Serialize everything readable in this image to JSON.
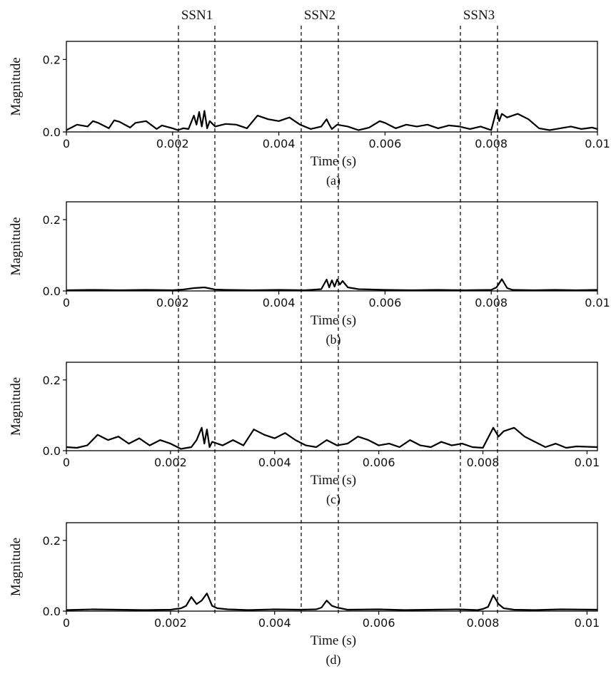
{
  "chart_data": [
    {
      "panel_label": "(a)",
      "type": "line",
      "xlabel": "Time (s)",
      "ylabel": "Magnitude",
      "xlim": [
        0,
        0.01
      ],
      "ylim": [
        0,
        0.25
      ],
      "xticks": [
        0,
        0.002,
        0.004,
        0.006,
        0.008,
        0.01
      ],
      "xtick_labels": [
        "0",
        "0.002",
        "0.004",
        "0.006",
        "0.008",
        "0.01"
      ],
      "yticks": [
        0,
        0.2
      ],
      "ytick_labels": [
        "0.0",
        "0.2"
      ],
      "grid": false,
      "series": [
        {
          "x": [
            0,
            0.0002,
            0.0004,
            0.0005,
            0.0006,
            0.0008,
            0.0009,
            0.001,
            0.0012,
            0.0013,
            0.0015,
            0.0017,
            0.0018,
            0.002,
            0.0021,
            0.0022,
            0.0023,
            0.0024,
            0.00245,
            0.0025,
            0.00255,
            0.0026,
            0.00265,
            0.0027,
            0.0028,
            0.003,
            0.0032,
            0.0034,
            0.0036,
            0.0038,
            0.004,
            0.0042,
            0.0043,
            0.0044,
            0.0046,
            0.0048,
            0.0049,
            0.00495,
            0.005,
            0.0051,
            0.0053,
            0.0055,
            0.0057,
            0.0059,
            0.006,
            0.0062,
            0.0064,
            0.0066,
            0.0068,
            0.007,
            0.0072,
            0.0074,
            0.0076,
            0.0078,
            0.008,
            0.0081,
            0.00815,
            0.0082,
            0.0083,
            0.0085,
            0.0087,
            0.0089,
            0.0091,
            0.0093,
            0.0095,
            0.0097,
            0.0099,
            0.01
          ],
          "values": [
            0.005,
            0.02,
            0.015,
            0.03,
            0.025,
            0.01,
            0.032,
            0.028,
            0.012,
            0.025,
            0.03,
            0.008,
            0.018,
            0.01,
            0.005,
            0.01,
            0.008,
            0.045,
            0.02,
            0.055,
            0.015,
            0.058,
            0.01,
            0.03,
            0.015,
            0.022,
            0.02,
            0.01,
            0.045,
            0.035,
            0.03,
            0.04,
            0.03,
            0.02,
            0.008,
            0.015,
            0.035,
            0.02,
            0.008,
            0.02,
            0.015,
            0.005,
            0.012,
            0.03,
            0.025,
            0.01,
            0.02,
            0.015,
            0.02,
            0.01,
            0.018,
            0.015,
            0.008,
            0.015,
            0.005,
            0.06,
            0.03,
            0.05,
            0.04,
            0.05,
            0.035,
            0.01,
            0.005,
            0.01,
            0.015,
            0.008,
            0.012,
            0.008
          ]
        }
      ]
    },
    {
      "panel_label": "(b)",
      "type": "line",
      "xlabel": "Time (s)",
      "ylabel": "Magnitude",
      "xlim": [
        0,
        0.01
      ],
      "ylim": [
        0,
        0.25
      ],
      "xticks": [
        0,
        0.002,
        0.004,
        0.006,
        0.008,
        0.01
      ],
      "xtick_labels": [
        "0",
        "0.002",
        "0.004",
        "0.006",
        "0.008",
        "0.01"
      ],
      "yticks": [
        0,
        0.2
      ],
      "ytick_labels": [
        "0.0",
        "0.2"
      ],
      "grid": false,
      "series": [
        {
          "x": [
            0,
            0.0005,
            0.001,
            0.0015,
            0.002,
            0.0022,
            0.0024,
            0.0026,
            0.0028,
            0.003,
            0.0035,
            0.004,
            0.0045,
            0.0048,
            0.0049,
            0.00495,
            0.005,
            0.00505,
            0.0051,
            0.00515,
            0.0052,
            0.0053,
            0.0055,
            0.006,
            0.0065,
            0.007,
            0.0075,
            0.008,
            0.0081,
            0.0082,
            0.0083,
            0.0084,
            0.0088,
            0.0092,
            0.0096,
            0.01
          ],
          "values": [
            0.002,
            0.003,
            0.002,
            0.003,
            0.002,
            0.004,
            0.008,
            0.01,
            0.004,
            0.003,
            0.002,
            0.003,
            0.002,
            0.005,
            0.032,
            0.01,
            0.03,
            0.012,
            0.032,
            0.018,
            0.028,
            0.01,
            0.005,
            0.003,
            0.002,
            0.003,
            0.002,
            0.003,
            0.01,
            0.033,
            0.008,
            0.003,
            0.002,
            0.003,
            0.002,
            0.003
          ]
        }
      ]
    },
    {
      "panel_label": "(c)",
      "type": "line",
      "xlabel": "Time (s)",
      "ylabel": "Magnitude",
      "xlim": [
        0,
        0.0102
      ],
      "ylim": [
        0,
        0.25
      ],
      "xticks": [
        0,
        0.002,
        0.004,
        0.006,
        0.008,
        0.01
      ],
      "xtick_labels": [
        "0",
        "0.002",
        "0.004",
        "0.006",
        "0.008",
        "0.01"
      ],
      "yticks": [
        0,
        0.2
      ],
      "ytick_labels": [
        "0.0",
        "0.2"
      ],
      "grid": false,
      "series": [
        {
          "x": [
            0,
            0.0002,
            0.0004,
            0.0006,
            0.0008,
            0.001,
            0.0012,
            0.0014,
            0.0016,
            0.0018,
            0.002,
            0.0022,
            0.0024,
            0.0025,
            0.0026,
            0.00265,
            0.0027,
            0.00275,
            0.0028,
            0.003,
            0.0032,
            0.0034,
            0.0036,
            0.0038,
            0.004,
            0.0042,
            0.0044,
            0.0046,
            0.0048,
            0.005,
            0.0052,
            0.0054,
            0.0056,
            0.0058,
            0.006,
            0.0062,
            0.0064,
            0.0066,
            0.0068,
            0.007,
            0.0072,
            0.0074,
            0.0076,
            0.0078,
            0.008,
            0.0082,
            0.0083,
            0.0084,
            0.0086,
            0.0088,
            0.009,
            0.0092,
            0.0094,
            0.0096,
            0.0098,
            0.0102
          ],
          "values": [
            0.01,
            0.008,
            0.015,
            0.045,
            0.03,
            0.04,
            0.02,
            0.035,
            0.015,
            0.03,
            0.02,
            0.005,
            0.01,
            0.03,
            0.065,
            0.02,
            0.06,
            0.01,
            0.025,
            0.015,
            0.03,
            0.015,
            0.06,
            0.045,
            0.035,
            0.05,
            0.03,
            0.015,
            0.01,
            0.03,
            0.015,
            0.02,
            0.04,
            0.03,
            0.015,
            0.02,
            0.01,
            0.03,
            0.015,
            0.01,
            0.025,
            0.015,
            0.02,
            0.01,
            0.008,
            0.065,
            0.04,
            0.055,
            0.065,
            0.04,
            0.025,
            0.01,
            0.02,
            0.008,
            0.012,
            0.01
          ]
        }
      ]
    },
    {
      "panel_label": "(d)",
      "type": "line",
      "xlabel": "Time (s)",
      "ylabel": "Magnitude",
      "xlim": [
        0,
        0.0102
      ],
      "ylim": [
        0,
        0.25
      ],
      "xticks": [
        0,
        0.002,
        0.004,
        0.006,
        0.008,
        0.01
      ],
      "xtick_labels": [
        "0",
        "0.002",
        "0.004",
        "0.006",
        "0.008",
        "0.01"
      ],
      "yticks": [
        0,
        0.2
      ],
      "ytick_labels": [
        "0.0",
        "0.2"
      ],
      "grid": false,
      "series": [
        {
          "x": [
            0,
            0.0005,
            0.001,
            0.0015,
            0.002,
            0.0022,
            0.0023,
            0.0024,
            0.0025,
            0.0026,
            0.0027,
            0.0028,
            0.0029,
            0.0031,
            0.0035,
            0.004,
            0.0045,
            0.0048,
            0.0049,
            0.005,
            0.0051,
            0.0052,
            0.0054,
            0.006,
            0.0065,
            0.007,
            0.0075,
            0.0079,
            0.008,
            0.0081,
            0.0082,
            0.0083,
            0.0084,
            0.0086,
            0.009,
            0.0095,
            0.0102
          ],
          "values": [
            0.003,
            0.005,
            0.004,
            0.003,
            0.004,
            0.008,
            0.015,
            0.04,
            0.02,
            0.03,
            0.05,
            0.015,
            0.008,
            0.005,
            0.003,
            0.005,
            0.004,
            0.005,
            0.01,
            0.03,
            0.015,
            0.01,
            0.004,
            0.005,
            0.003,
            0.004,
            0.005,
            0.003,
            0.006,
            0.012,
            0.045,
            0.02,
            0.008,
            0.004,
            0.003,
            0.005,
            0.004
          ]
        }
      ]
    }
  ],
  "markers": {
    "labels": [
      "SSN1",
      "SSN2",
      "SSN3"
    ],
    "line_color": "#000000",
    "line_style": "dashed"
  },
  "style": {
    "line_color": "#000000",
    "axis_color": "#000000",
    "background": "#ffffff"
  }
}
